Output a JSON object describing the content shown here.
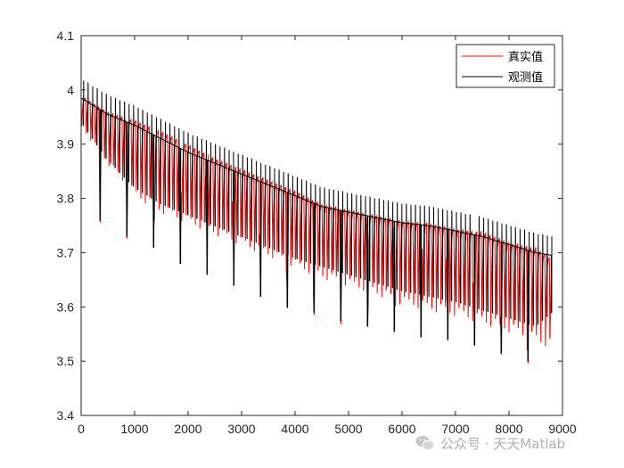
{
  "chart_data": {
    "type": "line",
    "title": "",
    "xlabel": "",
    "ylabel": "",
    "xlim": [
      0,
      9000
    ],
    "ylim": [
      3.4,
      4.1
    ],
    "xticks": [
      "0",
      "1000",
      "2000",
      "3000",
      "4000",
      "5000",
      "6000",
      "7000",
      "8000",
      "9000"
    ],
    "yticks": [
      "3.4",
      "3.5",
      "3.6",
      "3.7",
      "3.8",
      "3.9",
      "4",
      "4.1"
    ],
    "grid": false,
    "legend_position": "top-right",
    "cycle_period": 500,
    "spike_period": 85,
    "series": [
      {
        "name": "真实值",
        "color": "#ff0000",
        "x": [
          0,
          500,
          1000,
          1500,
          2000,
          2500,
          3000,
          3500,
          4000,
          4500,
          5000,
          5500,
          6000,
          6500,
          7000,
          7500,
          8000,
          8500,
          8800
        ],
        "upper": [
          3.99,
          3.96,
          3.945,
          3.925,
          3.9,
          3.875,
          3.855,
          3.835,
          3.815,
          3.79,
          3.78,
          3.77,
          3.76,
          3.755,
          3.745,
          3.74,
          3.72,
          3.71,
          3.69
        ],
        "lower": [
          3.93,
          3.86,
          3.8,
          3.77,
          3.75,
          3.73,
          3.71,
          3.69,
          3.67,
          3.65,
          3.635,
          3.62,
          3.6,
          3.59,
          3.58,
          3.565,
          3.55,
          3.53,
          3.52
        ],
        "spike_minima": [
          3.75,
          3.72,
          3.7,
          3.67,
          3.65,
          3.63,
          3.61,
          3.59,
          3.58,
          3.565,
          3.555,
          3.545,
          3.535,
          3.53,
          3.52,
          3.505,
          3.49,
          3.46
        ]
      },
      {
        "name": "观测值",
        "color": "#000000",
        "x": [
          0,
          500,
          1000,
          1500,
          2000,
          2500,
          3000,
          3500,
          4000,
          4500,
          5000,
          5500,
          6000,
          6500,
          7000,
          7500,
          8000,
          8500,
          8800
        ],
        "upper": [
          4.02,
          3.99,
          3.97,
          3.945,
          3.92,
          3.9,
          3.88,
          3.86,
          3.84,
          3.82,
          3.81,
          3.8,
          3.79,
          3.785,
          3.775,
          3.765,
          3.75,
          3.735,
          3.73
        ],
        "lower": [
          3.92,
          3.85,
          3.8,
          3.77,
          3.75,
          3.73,
          3.71,
          3.69,
          3.67,
          3.655,
          3.64,
          3.625,
          3.61,
          3.6,
          3.59,
          3.575,
          3.56,
          3.545,
          3.57
        ]
      }
    ]
  },
  "watermark": {
    "icon": "wechat-icon",
    "text": "公众号 · 天天Matlab"
  }
}
